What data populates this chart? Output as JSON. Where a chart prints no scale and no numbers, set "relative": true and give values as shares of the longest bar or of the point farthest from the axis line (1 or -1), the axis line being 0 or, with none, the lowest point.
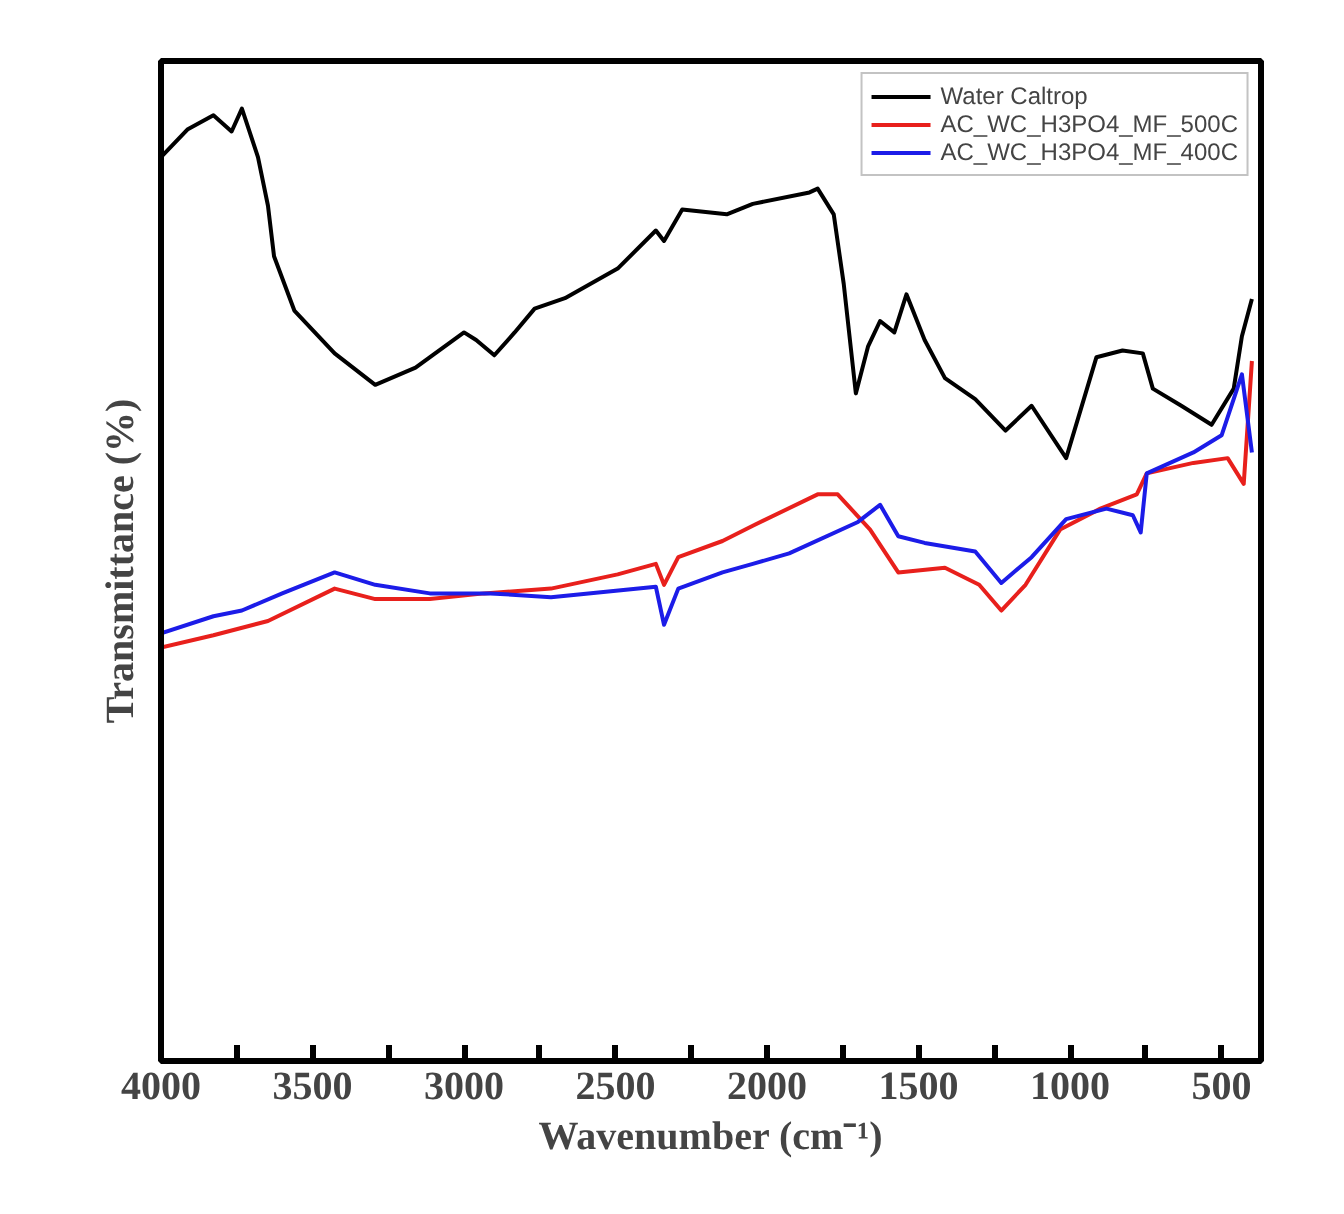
{
  "chart_data": {
    "type": "line",
    "xlabel": "Wavenumber (cm⁻¹)",
    "ylabel": "Transmittance (%)",
    "relative": true,
    "xlim": [
      4000,
      370
    ],
    "xticks": [
      4000,
      {
        "value": 3750,
        "label": null
      },
      3500,
      {
        "value": 3250,
        "label": null
      },
      3000,
      {
        "value": 2750,
        "label": null
      },
      2500,
      {
        "value": 2250,
        "label": null
      },
      2000,
      {
        "value": 1750,
        "label": null
      },
      1500,
      {
        "value": 1250,
        "label": null
      },
      1000,
      {
        "value": 750,
        "label": null
      },
      500
    ],
    "tick_labels": "x",
    "grid": false,
    "legend": "top right",
    "line_style": "solid",
    "marker": "none",
    "series": [
      {
        "name": "Water Caltrop",
        "color": "#000000",
        "x": [
          4000,
          3913,
          3827,
          3767,
          3733,
          3680,
          3647,
          3627,
          3560,
          3427,
          3293,
          3160,
          3000,
          2960,
          2900,
          2833,
          2767,
          2667,
          2493,
          2367,
          2340,
          2280,
          2133,
          2047,
          1860,
          1833,
          1780,
          1747,
          1707,
          1667,
          1627,
          1580,
          1540,
          1480,
          1413,
          1313,
          1213,
          1127,
          1013,
          913,
          827,
          760,
          727,
          633,
          533,
          460,
          433,
          400
        ],
        "values": [
          0.949,
          0.978,
          0.993,
          0.976,
          1.0,
          0.949,
          0.898,
          0.845,
          0.788,
          0.743,
          0.71,
          0.728,
          0.765,
          0.757,
          0.741,
          0.765,
          0.79,
          0.801,
          0.832,
          0.872,
          0.861,
          0.894,
          0.889,
          0.9,
          0.912,
          0.916,
          0.889,
          0.816,
          0.701,
          0.75,
          0.777,
          0.765,
          0.805,
          0.757,
          0.717,
          0.695,
          0.662,
          0.688,
          0.633,
          0.739,
          0.746,
          0.743,
          0.706,
          0.688,
          0.668,
          0.706,
          0.761,
          0.8
        ]
      },
      {
        "name": "AC_WC_H3PO4_MF_500C",
        "color": "#e8201c",
        "x": [
          4000,
          3827,
          3647,
          3427,
          3293,
          3113,
          2933,
          2713,
          2493,
          2367,
          2340,
          2293,
          2147,
          2047,
          1833,
          1767,
          1660,
          1567,
          1413,
          1300,
          1227,
          1147,
          1033,
          900,
          780,
          747,
          593,
          480,
          427,
          400
        ],
        "values": [
          0.434,
          0.447,
          0.462,
          0.496,
          0.485,
          0.485,
          0.491,
          0.496,
          0.511,
          0.522,
          0.5,
          0.529,
          0.546,
          0.562,
          0.595,
          0.595,
          0.558,
          0.513,
          0.518,
          0.5,
          0.473,
          0.5,
          0.558,
          0.58,
          0.595,
          0.617,
          0.628,
          0.633,
          0.606,
          0.735
        ]
      },
      {
        "name": "AC_WC_H3PO4_MF_400C",
        "color": "#1c1ce8",
        "x": [
          4000,
          3827,
          3733,
          3600,
          3427,
          3293,
          3113,
          2913,
          2713,
          2367,
          2340,
          2293,
          2147,
          2047,
          1927,
          1700,
          1627,
          1567,
          1480,
          1313,
          1227,
          1127,
          1013,
          880,
          793,
          767,
          747,
          593,
          500,
          433,
          400
        ],
        "values": [
          0.449,
          0.467,
          0.473,
          0.491,
          0.513,
          0.5,
          0.491,
          0.491,
          0.487,
          0.498,
          0.458,
          0.496,
          0.513,
          0.522,
          0.533,
          0.566,
          0.584,
          0.551,
          0.544,
          0.535,
          0.502,
          0.529,
          0.569,
          0.58,
          0.573,
          0.555,
          0.617,
          0.639,
          0.657,
          0.721,
          0.639
        ]
      }
    ]
  }
}
